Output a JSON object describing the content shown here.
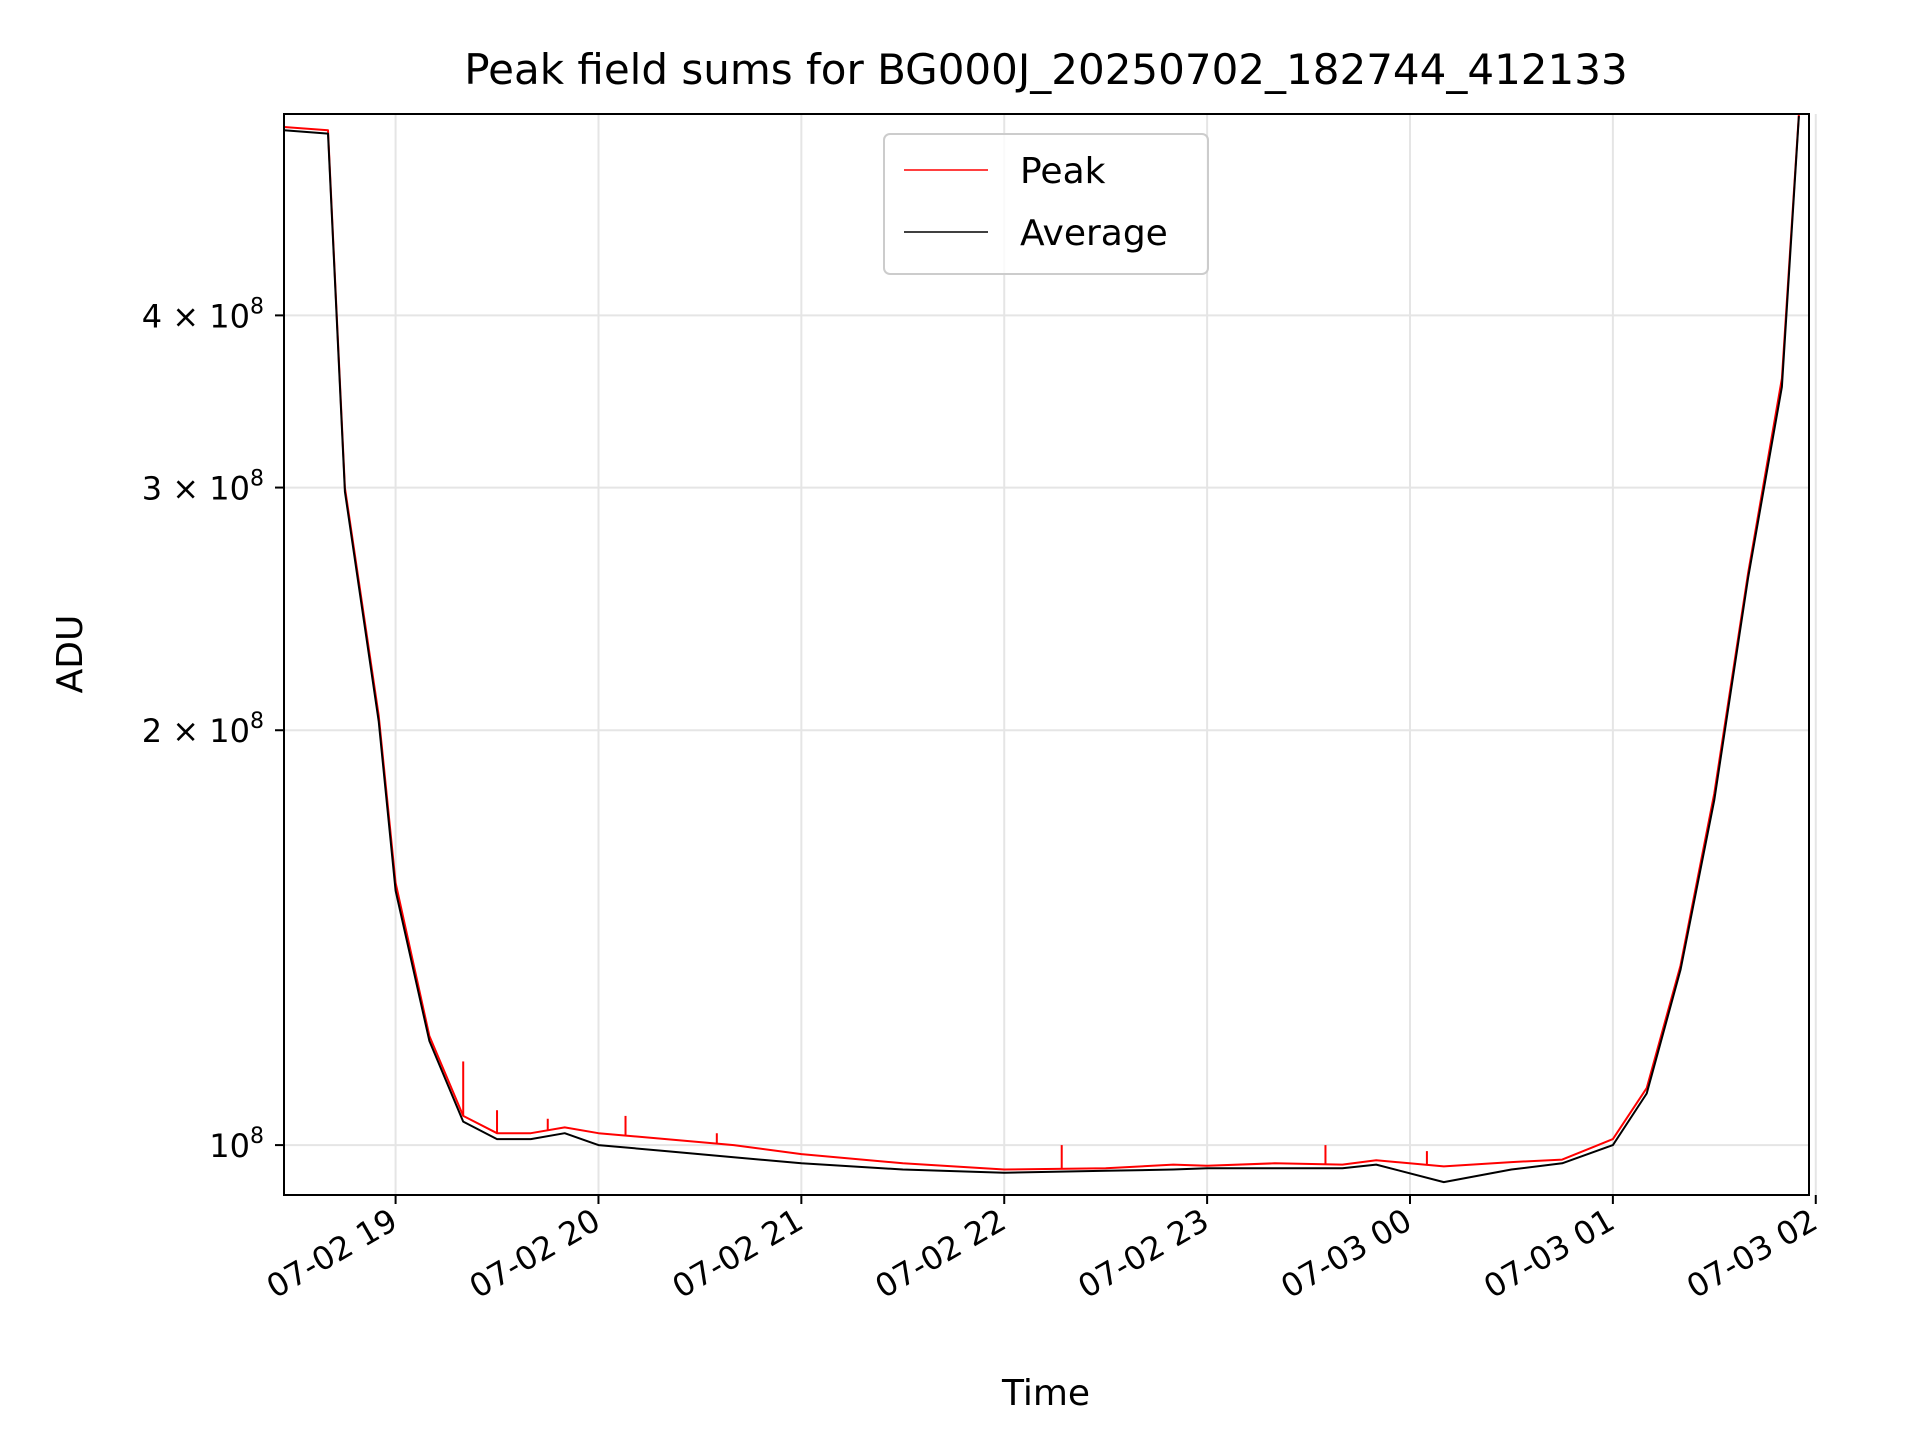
{
  "chart_data": {
    "type": "line",
    "title": "Peak field sums for BG000J_20250702_182744_412133",
    "xlabel": "Time",
    "ylabel": "ADU",
    "yscale": "log",
    "xlim": [
      "2025-07-02 18:27",
      "2025-07-03 01:58"
    ],
    "ylim": [
      92000000.0,
      560000000.0
    ],
    "grid": true,
    "legend_position": "upper center",
    "x_tick_labels": [
      "07-02 19",
      "07-02 20",
      "07-02 21",
      "07-02 22",
      "07-02 23",
      "07-03 00",
      "07-03 01",
      "07-03 02"
    ],
    "y_ticks": [
      {
        "value": 100000000,
        "label_base": "10",
        "label_exp": "8"
      },
      {
        "value": 200000000,
        "label_base": "2 × 10",
        "label_exp": "8"
      },
      {
        "value": 300000000,
        "label_base": "3 × 10",
        "label_exp": "8"
      },
      {
        "value": 400000000,
        "label_base": "4 × 10",
        "label_exp": "8"
      }
    ],
    "x": [
      "2025-07-02 18:27",
      "2025-07-02 18:40",
      "2025-07-02 18:45",
      "2025-07-02 18:55",
      "2025-07-02 19:00",
      "2025-07-02 19:10",
      "2025-07-02 19:20",
      "2025-07-02 19:30",
      "2025-07-02 19:40",
      "2025-07-02 19:50",
      "2025-07-02 20:00",
      "2025-07-02 20:20",
      "2025-07-02 20:40",
      "2025-07-02 21:00",
      "2025-07-02 21:30",
      "2025-07-02 22:00",
      "2025-07-02 22:30",
      "2025-07-02 22:50",
      "2025-07-02 23:00",
      "2025-07-02 23:20",
      "2025-07-02 23:40",
      "2025-07-02 23:50",
      "2025-07-03 00:10",
      "2025-07-03 00:30",
      "2025-07-03 00:45",
      "2025-07-03 01:00",
      "2025-07-03 01:10",
      "2025-07-03 01:20",
      "2025-07-03 01:30",
      "2025-07-03 01:40",
      "2025-07-03 01:50",
      "2025-07-03 01:55"
    ],
    "series": [
      {
        "name": "Peak",
        "color": "#ff0000",
        "values": [
          548000000.0,
          545000000.0,
          300000000.0,
          205000000.0,
          155000000.0,
          120000000.0,
          105000000.0,
          102000000.0,
          102000000.0,
          103000000.0,
          102000000.0,
          101000000.0,
          100000000.0,
          98500000.0,
          97000000.0,
          96000000.0,
          96200000.0,
          96800000.0,
          96600000.0,
          97000000.0,
          96800000.0,
          97500000.0,
          96500000.0,
          97200000.0,
          97600000.0,
          101000000.0,
          110000000.0,
          135000000.0,
          180000000.0,
          260000000.0,
          360000000.0,
          560000000.0
        ],
        "spikes": [
          {
            "x": "2025-07-02 19:20",
            "value": 115000000.0
          },
          {
            "x": "2025-07-02 19:30",
            "value": 106000000.0
          },
          {
            "x": "2025-07-02 19:45",
            "value": 104500000.0
          },
          {
            "x": "2025-07-02 20:08",
            "value": 105000000.0
          },
          {
            "x": "2025-07-02 20:35",
            "value": 102000000.0
          },
          {
            "x": "2025-07-02 22:17",
            "value": 100000000.0
          },
          {
            "x": "2025-07-02 23:35",
            "value": 100000000.0
          },
          {
            "x": "2025-07-03 00:05",
            "value": 99000000.0
          }
        ]
      },
      {
        "name": "Average",
        "color": "#000000",
        "values": [
          545000000.0,
          542000000.0,
          298000000.0,
          203000000.0,
          153000000.0,
          119000000.0,
          104000000.0,
          101000000.0,
          101000000.0,
          102000000.0,
          100000000.0,
          99000000.0,
          98000000.0,
          97000000.0,
          96000000.0,
          95500000.0,
          95800000.0,
          96000000.0,
          96200000.0,
          96200000.0,
          96200000.0,
          96800000.0,
          94000000.0,
          96000000.0,
          97000000.0,
          100000000.0,
          109000000.0,
          134000000.0,
          178000000.0,
          258000000.0,
          355000000.0,
          558000000.0
        ]
      }
    ]
  }
}
